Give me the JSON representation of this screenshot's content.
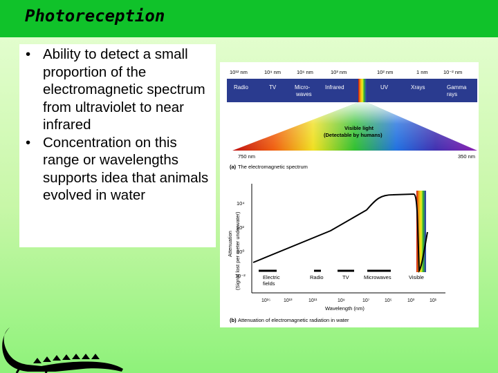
{
  "slide": {
    "title": "Photoreception",
    "bullets": [
      "Ability to detect a small proportion of the electromagnetic spectrum from ultraviolet to near infrared",
      "Concentration on this range or wavelengths supports idea that animals evolved in water"
    ]
  },
  "figure_a": {
    "caption_letter": "(a)",
    "caption": "The electromagnetic spectrum",
    "wavelength_labels": [
      "10¹² nm",
      "10⁹ nm",
      "10⁶ nm",
      "10³ nm",
      "10² nm",
      "1 nm",
      "10⁻² nm"
    ],
    "bands": [
      "Radio",
      "TV",
      "Micro-",
      "waves",
      "Infrared",
      "UV",
      "Xrays",
      "Gamma",
      "rays"
    ],
    "visible_title": "Visible light",
    "visible_note": "(Detectable by humans)",
    "left_edge": "750 nm",
    "right_edge": "350 nm"
  },
  "figure_b": {
    "caption_letter": "(b)",
    "caption": "Attenuation of electromagnetic radiation in water",
    "ylabel_main": "Attenuation",
    "ylabel_sub": "(Signal lost per meter underwater)",
    "yticks": [
      "10⁴",
      "10²",
      "10⁰",
      "10⁻²"
    ],
    "xlabel": "Wavelength (nm)",
    "xticks": [
      "10¹⁵",
      "10¹³",
      "10¹¹",
      "10⁹",
      "10⁷",
      "10⁵",
      "10³",
      "10¹"
    ],
    "regions": [
      "Electric",
      "fields",
      "Radio",
      "TV",
      "Microwaves",
      "Visible"
    ]
  },
  "colors": {
    "title_bar": "#10c22a",
    "background_top": "#e8ffd6",
    "background_bottom": "#8ef27a",
    "figure_bar": "#2a3b8f"
  },
  "icons": {
    "mascot": "crocodile-icon"
  }
}
